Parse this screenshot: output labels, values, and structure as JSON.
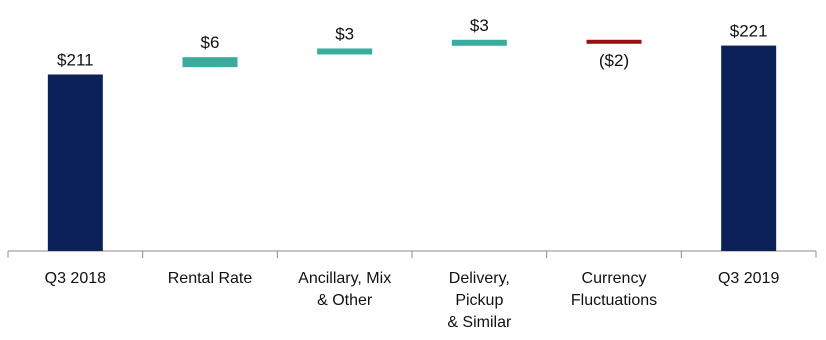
{
  "chart_data": {
    "type": "bar",
    "subtype": "waterfall",
    "title": "",
    "xlabel": "",
    "ylabel": "",
    "ylim": [
      150,
      225
    ],
    "grid": false,
    "legend": "none",
    "colors": {
      "total": "#0b2158",
      "increase": "#3aab9d",
      "decrease": "#9b0f12",
      "axis": "#8c8c8c",
      "text": "#111111"
    },
    "categories": [
      [
        "Q3 2018"
      ],
      [
        "Rental Rate"
      ],
      [
        "Ancillary, Mix",
        "& Other"
      ],
      [
        "Delivery,",
        "Pickup",
        "& Similar"
      ],
      [
        "Currency",
        "Fluctuations"
      ],
      [
        "Q3 2019"
      ]
    ],
    "steps": [
      {
        "kind": "total",
        "value": 211,
        "label": "$211"
      },
      {
        "kind": "increase",
        "value": 6,
        "label": "$6"
      },
      {
        "kind": "increase",
        "value": 3,
        "label": "$3"
      },
      {
        "kind": "increase",
        "value": 3,
        "label": "$3"
      },
      {
        "kind": "decrease",
        "value": -2,
        "label": "($2)"
      },
      {
        "kind": "total",
        "value": 221,
        "label": "$221"
      }
    ]
  }
}
